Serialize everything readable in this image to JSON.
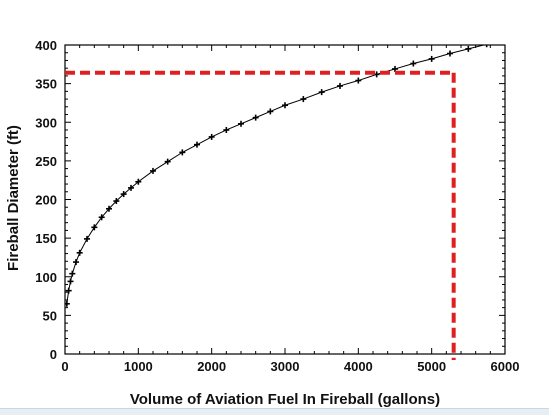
{
  "chart_data": {
    "type": "line",
    "title": "",
    "xlabel": "Volume of Aviation Fuel In Fireball (gallons)",
    "ylabel": "Fireball Diameter (ft)",
    "xlim": [
      0,
      6000
    ],
    "ylim": [
      0,
      400
    ],
    "x_ticks": [
      "0",
      "1000",
      "2000",
      "3000",
      "4000",
      "5000",
      "6000"
    ],
    "y_ticks": [
      "0",
      "50",
      "100",
      "150",
      "200",
      "250",
      "300",
      "350",
      "400"
    ],
    "grid": false,
    "legend": "none",
    "series": [
      {
        "line_color": "#000000",
        "marker": "plus",
        "x": [
          25,
          50,
          75,
          100,
          150,
          200,
          300,
          400,
          500,
          600,
          700,
          800,
          900,
          1000,
          1200,
          1400,
          1600,
          1800,
          2000,
          2200,
          2400,
          2600,
          2800,
          3000,
          3250,
          3500,
          3750,
          4000,
          4250,
          4500,
          4750,
          5000,
          5250,
          5500,
          5750,
          6000
        ],
        "y": [
          65,
          82,
          94,
          104,
          119,
          131,
          149,
          164,
          177,
          188,
          198,
          207,
          215,
          223,
          237,
          249,
          261,
          271,
          281,
          290,
          298,
          306,
          314,
          322,
          330,
          339,
          347,
          354,
          362,
          369,
          376,
          382,
          389,
          395,
          401,
          407
        ]
      }
    ],
    "annotations": [
      {
        "kind": "dashed-guide",
        "color": "#e02020",
        "x": 5300,
        "y": 364
      }
    ]
  }
}
